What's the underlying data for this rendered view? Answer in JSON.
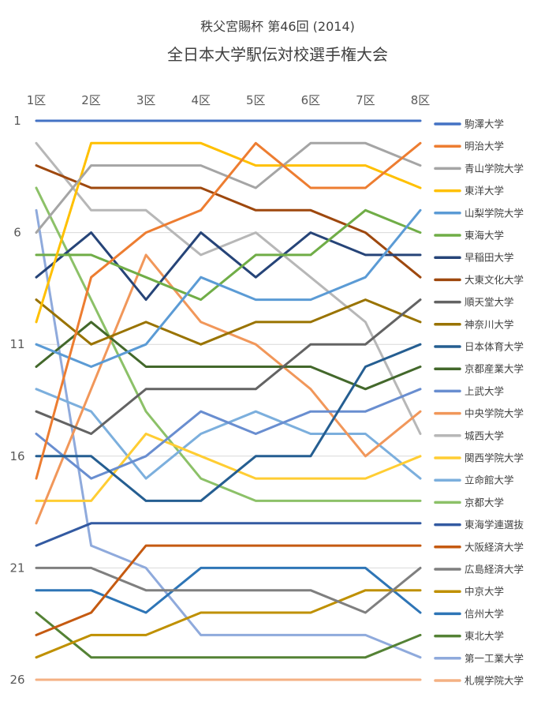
{
  "chart_data": {
    "type": "line",
    "title": "秩父宮賜杯 第46回 (2014)",
    "subtitle": "全日本大学駅伝対校選手権大会",
    "x": [
      "1区",
      "2区",
      "3区",
      "4区",
      "5区",
      "6区",
      "7区",
      "8区"
    ],
    "y_ticks": [
      1,
      6,
      11,
      16,
      21,
      26
    ],
    "ylim": [
      1,
      26
    ],
    "y_reversed": true,
    "grid": true,
    "legend": "right",
    "series": [
      {
        "name": "駒澤大学",
        "color": "#4472C4",
        "values": [
          1,
          1,
          1,
          1,
          1,
          1,
          1,
          1
        ]
      },
      {
        "name": "明治大学",
        "color": "#ED7D31",
        "values": [
          17,
          8,
          6,
          5,
          2,
          4,
          4,
          2
        ]
      },
      {
        "name": "青山学院大学",
        "color": "#A5A5A5",
        "values": [
          6,
          3,
          3,
          3,
          4,
          2,
          2,
          3
        ]
      },
      {
        "name": "東洋大学",
        "color": "#FFC000",
        "values": [
          10,
          2,
          2,
          2,
          3,
          3,
          3,
          4
        ]
      },
      {
        "name": "山梨学院大学",
        "color": "#5B9BD5",
        "values": [
          11,
          12,
          11,
          8,
          9,
          9,
          8,
          5
        ]
      },
      {
        "name": "東海大学",
        "color": "#70AD47",
        "values": [
          7,
          7,
          8,
          9,
          7,
          7,
          5,
          6
        ]
      },
      {
        "name": "早稲田大学",
        "color": "#264478",
        "values": [
          8,
          6,
          9,
          6,
          8,
          6,
          7,
          7
        ]
      },
      {
        "name": "大東文化大学",
        "color": "#9E480E",
        "values": [
          3,
          4,
          4,
          4,
          5,
          5,
          6,
          8
        ]
      },
      {
        "name": "順天堂大学",
        "color": "#636363",
        "values": [
          14,
          15,
          13,
          13,
          13,
          11,
          11,
          9
        ]
      },
      {
        "name": "神奈川大学",
        "color": "#997300",
        "values": [
          9,
          11,
          10,
          11,
          10,
          10,
          9,
          10
        ]
      },
      {
        "name": "日本体育大学",
        "color": "#255E91",
        "values": [
          16,
          16,
          18,
          18,
          16,
          16,
          12,
          11
        ]
      },
      {
        "name": "京都産業大学",
        "color": "#43682B",
        "values": [
          12,
          10,
          12,
          12,
          12,
          12,
          13,
          12
        ]
      },
      {
        "name": "上武大学",
        "color": "#698ED0",
        "values": [
          15,
          17,
          16,
          14,
          15,
          14,
          14,
          13
        ]
      },
      {
        "name": "中央学院大学",
        "color": "#F1975A",
        "values": [
          19,
          13,
          7,
          10,
          11,
          13,
          16,
          14
        ]
      },
      {
        "name": "城西大学",
        "color": "#B7B7B7",
        "values": [
          2,
          5,
          5,
          7,
          6,
          8,
          10,
          15
        ]
      },
      {
        "name": "関西学院大学",
        "color": "#FFCD33",
        "values": [
          18,
          18,
          15,
          16,
          17,
          17,
          17,
          16
        ]
      },
      {
        "name": "立命館大学",
        "color": "#7CAFDD",
        "values": [
          13,
          14,
          17,
          15,
          14,
          15,
          15,
          17
        ]
      },
      {
        "name": "京都大学",
        "color": "#8CC168",
        "values": [
          4,
          9,
          14,
          17,
          18,
          18,
          18,
          18
        ]
      },
      {
        "name": "東海学連選抜",
        "color": "#335AA1",
        "values": [
          20,
          19,
          19,
          19,
          19,
          19,
          19,
          19
        ]
      },
      {
        "name": "大阪経済大学",
        "color": "#C55A11",
        "values": [
          24,
          23,
          20,
          20,
          20,
          20,
          20,
          20
        ]
      },
      {
        "name": "広島経済大学",
        "color": "#7F7F7F",
        "values": [
          21,
          21,
          22,
          22,
          22,
          22,
          23,
          21
        ]
      },
      {
        "name": "中京大学",
        "color": "#BF9000",
        "values": [
          25,
          24,
          24,
          23,
          23,
          23,
          22,
          22
        ]
      },
      {
        "name": "信州大学",
        "color": "#2E75B6",
        "values": [
          22,
          22,
          23,
          21,
          21,
          21,
          21,
          23
        ]
      },
      {
        "name": "東北大学",
        "color": "#548235",
        "values": [
          23,
          25,
          25,
          25,
          25,
          25,
          25,
          24
        ]
      },
      {
        "name": "第一工業大学",
        "color": "#8FAADC",
        "values": [
          5,
          20,
          21,
          24,
          24,
          24,
          24,
          25
        ]
      },
      {
        "name": "札幌学院大学",
        "color": "#F4B183",
        "values": [
          26,
          26,
          26,
          26,
          26,
          26,
          26,
          26
        ]
      }
    ]
  }
}
